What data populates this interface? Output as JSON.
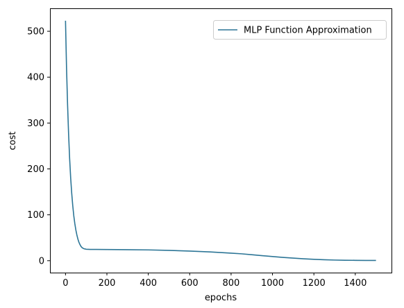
{
  "chart_data": {
    "type": "line",
    "title": "",
    "xlabel": "epochs",
    "ylabel": "cost",
    "xlim": [
      -75,
      1575
    ],
    "ylim": [
      -26,
      550
    ],
    "xticks": [
      0,
      200,
      400,
      600,
      800,
      1000,
      1200,
      1400
    ],
    "yticks": [
      0,
      100,
      200,
      300,
      400,
      500
    ],
    "grid": false,
    "legend_position": "top-right",
    "series": [
      {
        "name": "MLP Function Approximation",
        "color": "#2c7596",
        "x": [
          0,
          5,
          10,
          15,
          20,
          25,
          30,
          35,
          40,
          45,
          50,
          55,
          60,
          65,
          70,
          75,
          80,
          85,
          90,
          95,
          100,
          110,
          120,
          150,
          200,
          300,
          400,
          500,
          600,
          700,
          800,
          850,
          900,
          950,
          1000,
          1050,
          1100,
          1150,
          1200,
          1250,
          1300,
          1350,
          1400,
          1450,
          1500
        ],
        "values": [
          523,
          420,
          340,
          275,
          222,
          180,
          147,
          120,
          98,
          81,
          67,
          56,
          47,
          40,
          35,
          31,
          28.5,
          27,
          26,
          25.5,
          25,
          24.8,
          24.6,
          24.5,
          24.3,
          24,
          23.5,
          22.5,
          21,
          19,
          16.5,
          15,
          13,
          11,
          9,
          7.2,
          5.6,
          4.2,
          3,
          2.1,
          1.4,
          1,
          0.8,
          0.6,
          0.5
        ]
      }
    ]
  }
}
